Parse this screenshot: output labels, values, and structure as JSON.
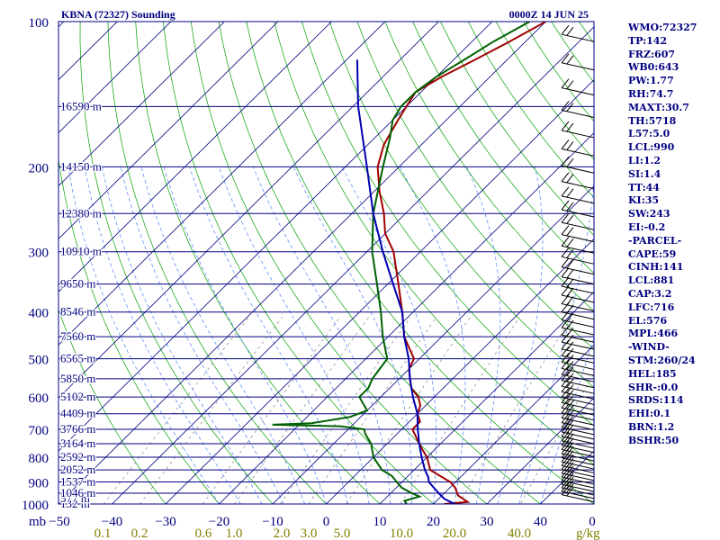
{
  "chart_data": {
    "type": "line",
    "title": "KBNA (72327) Sounding",
    "valid_time": "0000Z 14 JUN 25",
    "pressure_levels": [
      1000,
      900,
      800,
      700,
      600,
      500,
      400,
      300,
      200,
      100
    ],
    "pressure_tick_labels": [
      "1000",
      "900",
      "800",
      "700",
      "600",
      "500",
      "400",
      "300",
      "200",
      "100"
    ],
    "pressure_unit_label": "mb",
    "temperature_ticks": [
      -40,
      -30,
      -20,
      -10,
      0,
      10,
      20,
      30,
      40
    ],
    "temperature_tick_labels": [
      "−40",
      "−30",
      "−20",
      "−10",
      "0",
      "10",
      "20",
      "30",
      "40"
    ],
    "temperature_left_label": "−50",
    "temperature_right_label": "0",
    "xlim": [
      -50,
      50
    ],
    "ylim": [
      1000,
      100
    ],
    "mixing_ratio_labels": [
      "0.1",
      "0.2",
      "0.6",
      "1.0",
      "2.0",
      "3.0",
      "5.0",
      "10.0",
      "20.0",
      "40.0"
    ],
    "mixing_ratio_unit": "g/kg",
    "height_labels": [
      {
        "p": 1000,
        "text": "132 m"
      },
      {
        "p": 975,
        "text": "577 m"
      },
      {
        "p": 950,
        "text": "1046 m"
      },
      {
        "p": 900,
        "text": "1537 m"
      },
      {
        "p": 850,
        "text": "2052 m"
      },
      {
        "p": 800,
        "text": "2592 m"
      },
      {
        "p": 750,
        "text": "3164 m"
      },
      {
        "p": 700,
        "text": "3766 m"
      },
      {
        "p": 650,
        "text": "4409 m"
      },
      {
        "p": 600,
        "text": "5102 m"
      },
      {
        "p": 550,
        "text": "5850 m"
      },
      {
        "p": 500,
        "text": "6565 m"
      },
      {
        "p": 450,
        "text": "7560 m"
      },
      {
        "p": 400,
        "text": "8546 m"
      },
      {
        "p": 350,
        "text": "9650 m"
      },
      {
        "p": 300,
        "text": "10910 m"
      },
      {
        "p": 250,
        "text": "12380 m"
      },
      {
        "p": 200,
        "text": "14150 m"
      },
      {
        "p": 150,
        "text": "16590 m"
      }
    ],
    "series": [
      {
        "name": "temperature",
        "color": "#a00000",
        "points": [
          [
            1000,
            22
          ],
          [
            990,
            26
          ],
          [
            960,
            23
          ],
          [
            925,
            21
          ],
          [
            900,
            19
          ],
          [
            875,
            16
          ],
          [
            850,
            13
          ],
          [
            800,
            10
          ],
          [
            775,
            8
          ],
          [
            750,
            6
          ],
          [
            700,
            2
          ],
          [
            675,
            2
          ],
          [
            650,
            0
          ],
          [
            625,
            -1
          ],
          [
            600,
            -3
          ],
          [
            575,
            -6
          ],
          [
            550,
            -8
          ],
          [
            525,
            -10
          ],
          [
            500,
            -11
          ],
          [
            450,
            -17
          ],
          [
            400,
            -22
          ],
          [
            350,
            -28
          ],
          [
            300,
            -35
          ],
          [
            275,
            -40
          ],
          [
            250,
            -44
          ],
          [
            225,
            -49
          ],
          [
            200,
            -54
          ],
          [
            180,
            -57
          ],
          [
            160,
            -59
          ],
          [
            150,
            -60
          ],
          [
            140,
            -61
          ],
          [
            130,
            -59
          ],
          [
            120,
            -56
          ],
          [
            110,
            -53
          ],
          [
            100,
            -50
          ]
        ]
      },
      {
        "name": "dewpoint",
        "color": "#006000",
        "points": [
          [
            1000,
            15
          ],
          [
            985,
            14
          ],
          [
            965,
            16
          ],
          [
            950,
            14
          ],
          [
            925,
            11
          ],
          [
            900,
            9
          ],
          [
            875,
            7
          ],
          [
            850,
            4
          ],
          [
            800,
            0
          ],
          [
            750,
            -3
          ],
          [
            715,
            -6
          ],
          [
            700,
            -7
          ],
          [
            690,
            -12
          ],
          [
            685,
            -25
          ],
          [
            680,
            -18
          ],
          [
            670,
            -15
          ],
          [
            660,
            -12
          ],
          [
            650,
            -11
          ],
          [
            640,
            -10
          ],
          [
            600,
            -14
          ],
          [
            575,
            -14
          ],
          [
            550,
            -15
          ],
          [
            500,
            -16
          ],
          [
            450,
            -21
          ],
          [
            400,
            -26
          ],
          [
            350,
            -32
          ],
          [
            300,
            -39
          ],
          [
            250,
            -46
          ],
          [
            200,
            -53
          ],
          [
            175,
            -57
          ],
          [
            160,
            -60
          ],
          [
            150,
            -61
          ],
          [
            140,
            -61
          ],
          [
            130,
            -60
          ],
          [
            120,
            -58
          ],
          [
            110,
            -56
          ],
          [
            100,
            -53
          ]
        ]
      },
      {
        "name": "parcel",
        "color": "#0000b0",
        "points": [
          [
            1000,
            24
          ],
          [
            975,
            21
          ],
          [
            950,
            19
          ],
          [
            925,
            17
          ],
          [
            900,
            15
          ],
          [
            880,
            14
          ],
          [
            850,
            12
          ],
          [
            800,
            9
          ],
          [
            750,
            6
          ],
          [
            700,
            3
          ],
          [
            650,
            0
          ],
          [
            600,
            -4
          ],
          [
            550,
            -8
          ],
          [
            500,
            -12
          ],
          [
            450,
            -17
          ],
          [
            400,
            -22
          ],
          [
            350,
            -29
          ],
          [
            300,
            -37
          ],
          [
            250,
            -46
          ],
          [
            200,
            -56
          ],
          [
            150,
            -69
          ],
          [
            120,
            -78
          ]
        ]
      }
    ],
    "grid": true,
    "legend": "none"
  },
  "indices": [
    "WMO:72327",
    "TP:142",
    "FRZ:607",
    "WB0:643",
    "PW:1.77",
    "RH:74.7",
    "MAXT:30.7",
    "TH:5718",
    "L57:5.0",
    "LCL:990",
    "LI:1.2",
    "SI:1.4",
    "TT:44",
    "KI:35",
    "SW:243",
    "EI:-0.2",
    "-PARCEL-",
    "CAPE:59",
    "CINH:141",
    "LCL:881",
    "CAP:3.2",
    "LFC:716",
    "EL:576",
    "MPL:466",
    "-WIND-",
    "STM:260/24",
    "HEL:185",
    "SHR-:0.0",
    "SRDS:114",
    "EHI:0.1",
    "BRN:1.2",
    "BSHR:50"
  ],
  "colors": {
    "isobar": "#000080",
    "isotherm": "#000080",
    "dry_adiabat": "#00a000",
    "moist_adiabat": "#5080ff",
    "mixing_ratio": "#707070",
    "tick_text": "#000080",
    "mixing_text": "#808000",
    "barb": "#000000"
  }
}
